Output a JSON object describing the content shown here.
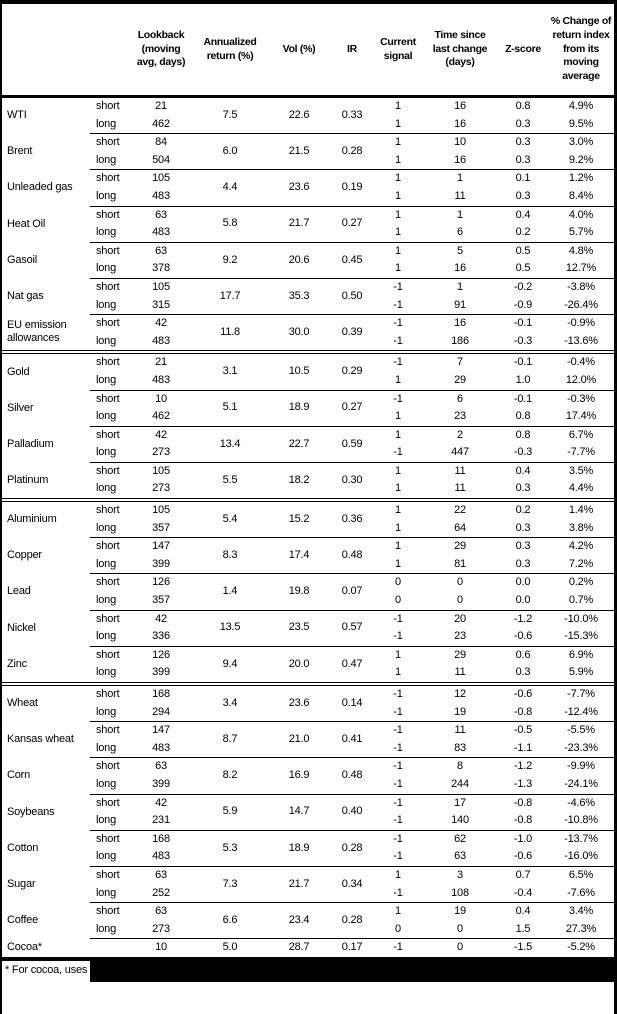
{
  "colors": {
    "text": "#000000",
    "background": "#ffffff",
    "rule": "#000000"
  },
  "table": {
    "column_headers": [
      "Lookback\n(moving\navg, days)",
      "Annualized\nreturn (%)",
      "Vol (%)",
      "IR",
      "Current\nsignal",
      "Time since\nlast change\n(days)",
      "Z-score",
      "% Change of\nreturn index\nfrom its\nmoving\naverage"
    ],
    "groups": [
      {
        "name": "WTI",
        "annualized": "7.5",
        "vol": "22.6",
        "ir": "0.33",
        "rows": [
          {
            "leg": "short",
            "lookback": "21",
            "signal": "1",
            "time_since": "16",
            "z_score": "0.8",
            "pct_change": "4.9%"
          },
          {
            "leg": "long",
            "lookback": "462",
            "signal": "1",
            "time_since": "16",
            "z_score": "0.3",
            "pct_change": "9.5%"
          }
        ]
      },
      {
        "name": "Brent",
        "annualized": "6.0",
        "vol": "21.5",
        "ir": "0.28",
        "rows": [
          {
            "leg": "short",
            "lookback": "84",
            "signal": "1",
            "time_since": "10",
            "z_score": "0.3",
            "pct_change": "3.0%"
          },
          {
            "leg": "long",
            "lookback": "504",
            "signal": "1",
            "time_since": "16",
            "z_score": "0.3",
            "pct_change": "9.2%"
          }
        ]
      },
      {
        "name": "Unleaded gas",
        "annualized": "4.4",
        "vol": "23.6",
        "ir": "0.19",
        "rows": [
          {
            "leg": "short",
            "lookback": "105",
            "signal": "1",
            "time_since": "1",
            "z_score": "0.1",
            "pct_change": "1.2%"
          },
          {
            "leg": "long",
            "lookback": "483",
            "signal": "1",
            "time_since": "11",
            "z_score": "0.3",
            "pct_change": "8.4%"
          }
        ]
      },
      {
        "name": "Heat Oil",
        "annualized": "5.8",
        "vol": "21.7",
        "ir": "0.27",
        "rows": [
          {
            "leg": "short",
            "lookback": "63",
            "signal": "1",
            "time_since": "1",
            "z_score": "0.4",
            "pct_change": "4.0%"
          },
          {
            "leg": "long",
            "lookback": "483",
            "signal": "1",
            "time_since": "6",
            "z_score": "0.2",
            "pct_change": "5.7%"
          }
        ]
      },
      {
        "name": "Gasoil",
        "annualized": "9.2",
        "vol": "20.6",
        "ir": "0.45",
        "rows": [
          {
            "leg": "short",
            "lookback": "63",
            "signal": "1",
            "time_since": "5",
            "z_score": "0.5",
            "pct_change": "4.8%"
          },
          {
            "leg": "long",
            "lookback": "378",
            "signal": "1",
            "time_since": "16",
            "z_score": "0.5",
            "pct_change": "12.7%"
          }
        ]
      },
      {
        "name": "Nat gas",
        "annualized": "17.7",
        "vol": "35.3",
        "ir": "0.50",
        "rows": [
          {
            "leg": "short",
            "lookback": "105",
            "signal": "-1",
            "time_since": "1",
            "z_score": "-0.2",
            "pct_change": "-3.8%"
          },
          {
            "leg": "long",
            "lookback": "315",
            "signal": "-1",
            "time_since": "91",
            "z_score": "-0.9",
            "pct_change": "-26.4%"
          }
        ]
      },
      {
        "name": "EU emission allowances",
        "annualized": "11.8",
        "vol": "30.0",
        "ir": "0.39",
        "rows": [
          {
            "leg": "short",
            "lookback": "42",
            "signal": "-1",
            "time_since": "16",
            "z_score": "-0.1",
            "pct_change": "-0.9%"
          },
          {
            "leg": "long",
            "lookback": "483",
            "signal": "-1",
            "time_since": "186",
            "z_score": "-0.3",
            "pct_change": "-13.6%"
          }
        ]
      },
      {
        "name": "Gold",
        "section_start": true,
        "annualized": "3.1",
        "vol": "10.5",
        "ir": "0.29",
        "rows": [
          {
            "leg": "short",
            "lookback": "21",
            "signal": "-1",
            "time_since": "7",
            "z_score": "-0.1",
            "pct_change": "-0.4%"
          },
          {
            "leg": "long",
            "lookback": "483",
            "signal": "1",
            "time_since": "29",
            "z_score": "1.0",
            "pct_change": "12.0%"
          }
        ]
      },
      {
        "name": "Silver",
        "annualized": "5.1",
        "vol": "18.9",
        "ir": "0.27",
        "rows": [
          {
            "leg": "short",
            "lookback": "10",
            "signal": "-1",
            "time_since": "6",
            "z_score": "-0.1",
            "pct_change": "-0.3%"
          },
          {
            "leg": "long",
            "lookback": "462",
            "signal": "1",
            "time_since": "23",
            "z_score": "0.8",
            "pct_change": "17.4%"
          }
        ]
      },
      {
        "name": "Palladium",
        "annualized": "13.4",
        "vol": "22.7",
        "ir": "0.59",
        "rows": [
          {
            "leg": "short",
            "lookback": "42",
            "signal": "1",
            "time_since": "2",
            "z_score": "0.8",
            "pct_change": "6.7%"
          },
          {
            "leg": "long",
            "lookback": "273",
            "signal": "-1",
            "time_since": "447",
            "z_score": "-0.3",
            "pct_change": "-7.7%"
          }
        ]
      },
      {
        "name": "Platinum",
        "annualized": "5.5",
        "vol": "18.2",
        "ir": "0.30",
        "rows": [
          {
            "leg": "short",
            "lookback": "105",
            "signal": "1",
            "time_since": "11",
            "z_score": "0.4",
            "pct_change": "3.5%"
          },
          {
            "leg": "long",
            "lookback": "273",
            "signal": "1",
            "time_since": "11",
            "z_score": "0.3",
            "pct_change": "4.4%"
          }
        ]
      },
      {
        "name": "Aluminium",
        "section_start": true,
        "annualized": "5.4",
        "vol": "15.2",
        "ir": "0.36",
        "rows": [
          {
            "leg": "short",
            "lookback": "105",
            "signal": "1",
            "time_since": "22",
            "z_score": "0.2",
            "pct_change": "1.4%"
          },
          {
            "leg": "long",
            "lookback": "357",
            "signal": "1",
            "time_since": "64",
            "z_score": "0.3",
            "pct_change": "3.8%"
          }
        ]
      },
      {
        "name": "Copper",
        "annualized": "8.3",
        "vol": "17.4",
        "ir": "0.48",
        "rows": [
          {
            "leg": "short",
            "lookback": "147",
            "signal": "1",
            "time_since": "29",
            "z_score": "0.3",
            "pct_change": "4.2%"
          },
          {
            "leg": "long",
            "lookback": "399",
            "signal": "1",
            "time_since": "81",
            "z_score": "0.3",
            "pct_change": "7.2%"
          }
        ]
      },
      {
        "name": "Lead",
        "annualized": "1.4",
        "vol": "19.8",
        "ir": "0.07",
        "rows": [
          {
            "leg": "short",
            "lookback": "126",
            "signal": "0",
            "time_since": "0",
            "z_score": "0.0",
            "pct_change": "0.2%"
          },
          {
            "leg": "long",
            "lookback": "357",
            "signal": "0",
            "time_since": "0",
            "z_score": "0.0",
            "pct_change": "0.7%"
          }
        ]
      },
      {
        "name": "Nickel",
        "annualized": "13.5",
        "vol": "23.5",
        "ir": "0.57",
        "rows": [
          {
            "leg": "short",
            "lookback": "42",
            "signal": "-1",
            "time_since": "20",
            "z_score": "-1.2",
            "pct_change": "-10.0%"
          },
          {
            "leg": "long",
            "lookback": "336",
            "signal": "-1",
            "time_since": "23",
            "z_score": "-0.6",
            "pct_change": "-15.3%"
          }
        ]
      },
      {
        "name": "Zinc",
        "annualized": "9.4",
        "vol": "20.0",
        "ir": "0.47",
        "rows": [
          {
            "leg": "short",
            "lookback": "126",
            "signal": "1",
            "time_since": "29",
            "z_score": "0.6",
            "pct_change": "6.9%"
          },
          {
            "leg": "long",
            "lookback": "399",
            "signal": "1",
            "time_since": "11",
            "z_score": "0.3",
            "pct_change": "5.9%"
          }
        ]
      },
      {
        "name": "Wheat",
        "section_start": true,
        "annualized": "3.4",
        "vol": "23.6",
        "ir": "0.14",
        "rows": [
          {
            "leg": "short",
            "lookback": "168",
            "signal": "-1",
            "time_since": "12",
            "z_score": "-0.6",
            "pct_change": "-7.7%"
          },
          {
            "leg": "long",
            "lookback": "294",
            "signal": "-1",
            "time_since": "19",
            "z_score": "-0.8",
            "pct_change": "-12.4%"
          }
        ]
      },
      {
        "name": "Kansas wheat",
        "annualized": "8.7",
        "vol": "21.0",
        "ir": "0.41",
        "rows": [
          {
            "leg": "short",
            "lookback": "147",
            "signal": "-1",
            "time_since": "11",
            "z_score": "-0.5",
            "pct_change": "-5.5%"
          },
          {
            "leg": "long",
            "lookback": "483",
            "signal": "-1",
            "time_since": "83",
            "z_score": "-1.1",
            "pct_change": "-23.3%"
          }
        ]
      },
      {
        "name": "Corn",
        "annualized": "8.2",
        "vol": "16.9",
        "ir": "0.48",
        "rows": [
          {
            "leg": "short",
            "lookback": "63",
            "signal": "-1",
            "time_since": "8",
            "z_score": "-1.2",
            "pct_change": "-9.9%"
          },
          {
            "leg": "long",
            "lookback": "399",
            "signal": "-1",
            "time_since": "244",
            "z_score": "-1.3",
            "pct_change": "-24.1%"
          }
        ]
      },
      {
        "name": "Soybeans",
        "annualized": "5.9",
        "vol": "14.7",
        "ir": "0.40",
        "rows": [
          {
            "leg": "short",
            "lookback": "42",
            "signal": "-1",
            "time_since": "17",
            "z_score": "-0.8",
            "pct_change": "-4.6%"
          },
          {
            "leg": "long",
            "lookback": "231",
            "signal": "-1",
            "time_since": "140",
            "z_score": "-0.8",
            "pct_change": "-10.8%"
          }
        ]
      },
      {
        "name": "Cotton",
        "annualized": "5.3",
        "vol": "18.9",
        "ir": "0.28",
        "rows": [
          {
            "leg": "short",
            "lookback": "168",
            "signal": "-1",
            "time_since": "62",
            "z_score": "-1.0",
            "pct_change": "-13.7%"
          },
          {
            "leg": "long",
            "lookback": "483",
            "signal": "-1",
            "time_since": "63",
            "z_score": "-0.6",
            "pct_change": "-16.0%"
          }
        ]
      },
      {
        "name": "Sugar",
        "annualized": "7.3",
        "vol": "21.7",
        "ir": "0.34",
        "rows": [
          {
            "leg": "short",
            "lookback": "63",
            "signal": "1",
            "time_since": "3",
            "z_score": "0.7",
            "pct_change": "6.5%"
          },
          {
            "leg": "long",
            "lookback": "252",
            "signal": "-1",
            "time_since": "108",
            "z_score": "-0.4",
            "pct_change": "-7.6%"
          }
        ]
      },
      {
        "name": "Coffee",
        "annualized": "6.6",
        "vol": "23.4",
        "ir": "0.28",
        "rows": [
          {
            "leg": "short",
            "lookback": "63",
            "signal": "1",
            "time_since": "19",
            "z_score": "0.4",
            "pct_change": "3.4%"
          },
          {
            "leg": "long",
            "lookback": "273",
            "signal": "0",
            "time_since": "0",
            "z_score": "1.5",
            "pct_change": "27.3%"
          }
        ]
      },
      {
        "name": "Cocoa*",
        "annualized": "5.0",
        "vol": "28.7",
        "ir": "0.17",
        "rows": [
          {
            "leg": "",
            "lookback": "10",
            "signal": "-1",
            "time_since": "0",
            "z_score": "-1.5",
            "pct_change": "-5.2%"
          }
        ]
      }
    ]
  },
  "footnote": {
    "text": "* For cocoa, uses",
    "redacted": true
  }
}
